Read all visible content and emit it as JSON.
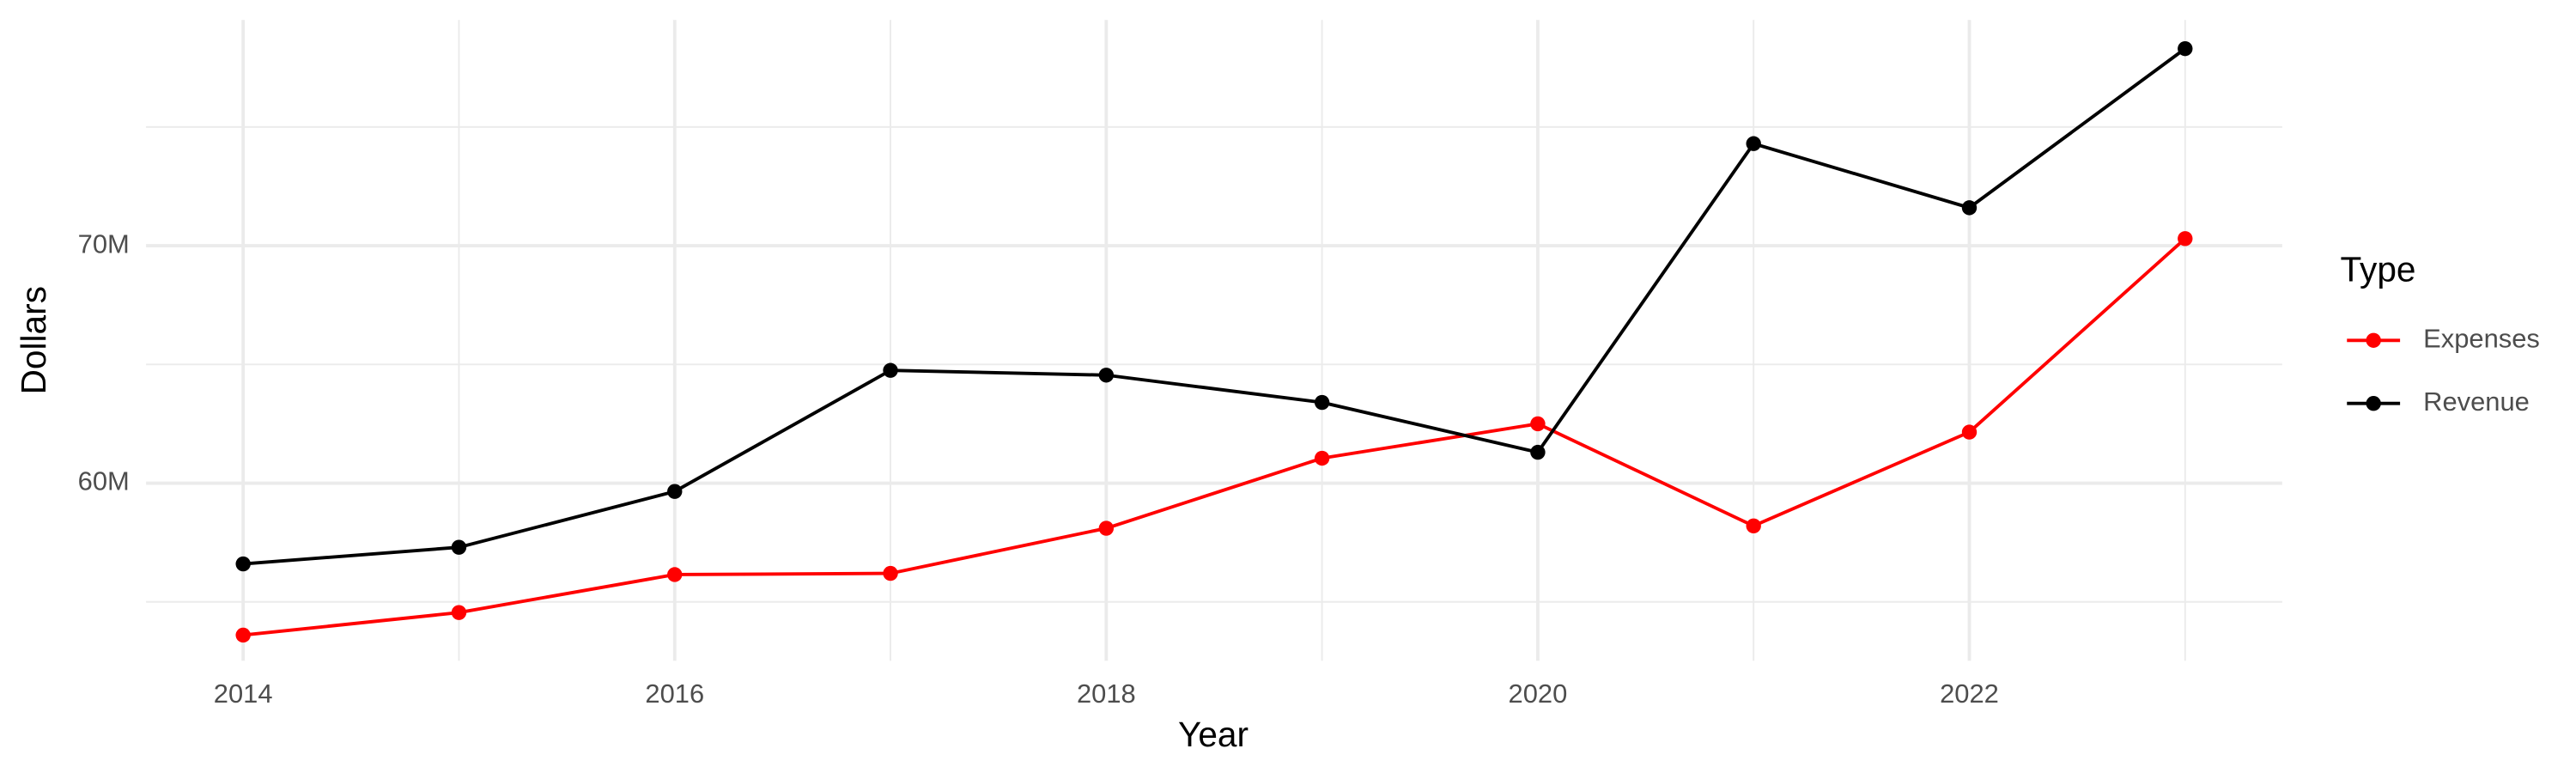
{
  "chart_data": {
    "type": "line",
    "x_label": "Year",
    "y_label": "Dollars",
    "x": [
      2014,
      2015,
      2016,
      2017,
      2018,
      2019,
      2020,
      2021,
      2022,
      2023
    ],
    "series": [
      {
        "name": "Expenses",
        "color": "#ff0000",
        "values": [
          53600000,
          54550000,
          56150000,
          56200000,
          58100000,
          61050000,
          62500000,
          58200000,
          62150000,
          70300000
        ]
      },
      {
        "name": "Revenue",
        "color": "#000000",
        "values": [
          56600000,
          57300000,
          59650000,
          64750000,
          64550000,
          63400000,
          61300000,
          74300000,
          71600000,
          78300000
        ]
      }
    ],
    "xlim": [
      2013.55,
      2023.45
    ],
    "xticks": [
      2014,
      2016,
      2018,
      2020,
      2022
    ],
    "ylim": [
      52520000,
      79510000
    ],
    "yticks": [
      {
        "value": 60000000,
        "label": "60M"
      },
      {
        "value": 70000000,
        "label": "70M"
      }
    ],
    "grid": true,
    "legend_title": "Type",
    "legend": "right"
  }
}
